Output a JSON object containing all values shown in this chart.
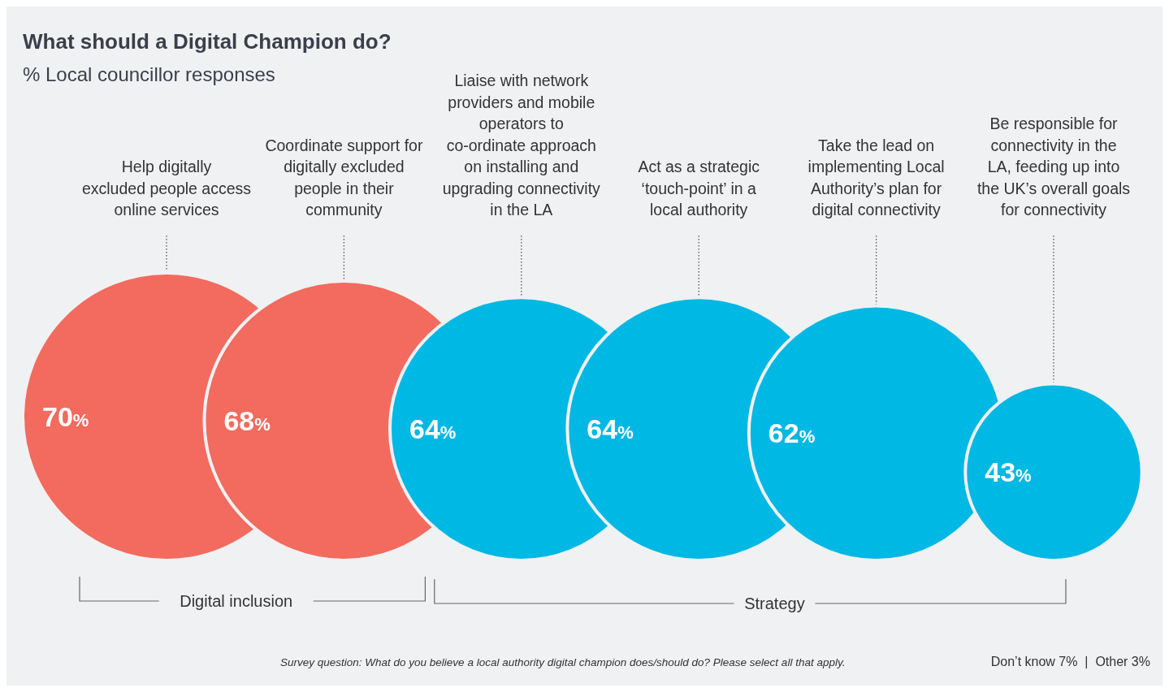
{
  "chart_data": {
    "type": "other",
    "title": "What should a Digital Champion do?",
    "subtitle": "% Local councillor responses",
    "categories": [
      "Help digitally excluded people access online services",
      "Coordinate support for digitally excluded people in their community",
      "Liaise with network providers and mobile operators to co-ordinate approach on installing and upgrading connectivity in the LA",
      "Act as a strategic ‘touch-point’ in a local authority",
      "Take the lead on implementing Local Authority’s plan for digital connectivity",
      "Be responsible for connectivity in the LA, feeding up into the UK’s overall goals for connectivity"
    ],
    "values": [
      70,
      68,
      64,
      64,
      62,
      43
    ],
    "colors": [
      "#f26b5e",
      "#f26b5e",
      "#00b8e4",
      "#00b8e4",
      "#00b8e4",
      "#00b8e4"
    ],
    "value_labels": [
      "70%",
      "68%",
      "64%",
      "64%",
      "62%",
      "43%"
    ],
    "annotations": [
      "Digital inclusion",
      "Strategy",
      "Survey question: What do you believe a local authority digital champion does/should do? Please select all that apply.",
      "Don’t know 7%  |  Other 3%"
    ]
  }
}
